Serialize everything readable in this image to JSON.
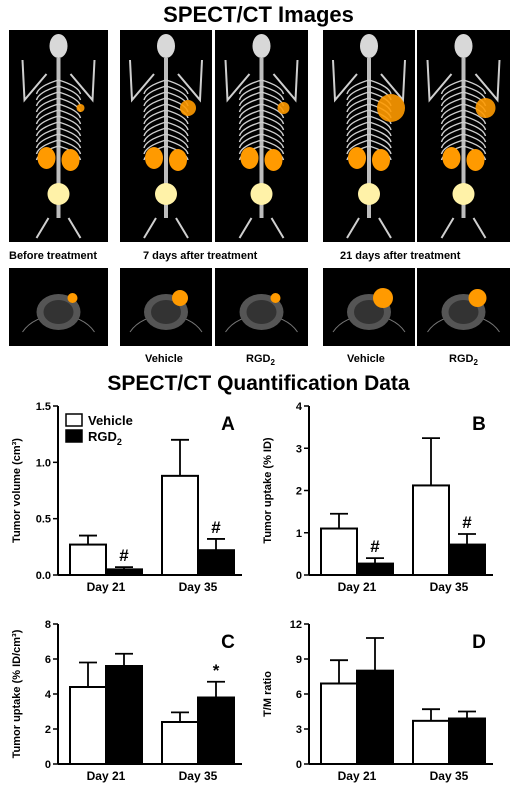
{
  "titles": {
    "images": "SPECT/CT Images",
    "quant": "SPECT/CT Quantification Data"
  },
  "image_captions": {
    "before": "Before treatment",
    "day7": "7 days after treatment",
    "day21": "21 days after treatment",
    "vehicle_a": "Vehicle",
    "rgd_a": "RGD",
    "vehicle_b": "Vehicle",
    "rgd_b": "RGD",
    "subscript": "2"
  },
  "legend": {
    "vehicle": "Vehicle",
    "rgd": "RGD",
    "subscript": "2"
  },
  "colors": {
    "vehicle_fill": "#ffffff",
    "rgd_fill": "#000000",
    "panel_bg": "#000000",
    "hot": "#ff9a00",
    "bone": "#d8d8d8"
  },
  "chart_data": [
    {
      "type": "bar",
      "panel": "A",
      "categories": [
        "Day 21",
        "Day 35"
      ],
      "ylabel": "Tumor volume (cm³)",
      "ylim": [
        0,
        1.5
      ],
      "yticks": [
        0.0,
        0.5,
        1.0,
        1.5
      ],
      "tick_labels": [
        "0.0",
        "0.5",
        "1.0",
        "1.5"
      ],
      "series": [
        {
          "name": "Vehicle",
          "values": [
            0.27,
            0.88
          ],
          "errors": [
            0.08,
            0.32
          ]
        },
        {
          "name": "RGD₂",
          "values": [
            0.05,
            0.22
          ],
          "errors": [
            0.02,
            0.1
          ]
        }
      ],
      "annotations": [
        "#",
        "#"
      ]
    },
    {
      "type": "bar",
      "panel": "B",
      "categories": [
        "Day 21",
        "Day 35"
      ],
      "ylabel": "Tumor uptake (% ID)",
      "ylim": [
        0,
        4
      ],
      "yticks": [
        0,
        1,
        2,
        3,
        4
      ],
      "tick_labels": [
        "0",
        "1",
        "2",
        "3",
        "4"
      ],
      "series": [
        {
          "name": "Vehicle",
          "values": [
            1.1,
            2.12
          ],
          "errors": [
            0.35,
            1.12
          ]
        },
        {
          "name": "RGD₂",
          "values": [
            0.27,
            0.72
          ],
          "errors": [
            0.13,
            0.25
          ]
        }
      ],
      "annotations": [
        "#",
        "#"
      ]
    },
    {
      "type": "bar",
      "panel": "C",
      "categories": [
        "Day 21",
        "Day 35"
      ],
      "ylabel": "Tumor uptake (% ID/cm³)",
      "ylim": [
        0,
        8
      ],
      "yticks": [
        0,
        2,
        4,
        6,
        8
      ],
      "tick_labels": [
        "0",
        "2",
        "4",
        "6",
        "8"
      ],
      "series": [
        {
          "name": "Vehicle",
          "values": [
            4.4,
            2.4
          ],
          "errors": [
            1.4,
            0.55
          ]
        },
        {
          "name": "RGD₂",
          "values": [
            5.6,
            3.8
          ],
          "errors": [
            0.7,
            0.9
          ]
        }
      ],
      "annotations": [
        "",
        "*"
      ]
    },
    {
      "type": "bar",
      "panel": "D",
      "categories": [
        "Day 21",
        "Day 35"
      ],
      "ylabel": "T/M ratio",
      "ylim": [
        0,
        12
      ],
      "yticks": [
        0,
        3,
        6,
        9,
        12
      ],
      "tick_labels": [
        "0",
        "3",
        "6",
        "9",
        "12"
      ],
      "series": [
        {
          "name": "Vehicle",
          "values": [
            6.9,
            3.7
          ],
          "errors": [
            2.0,
            1.0
          ]
        },
        {
          "name": "RGD₂",
          "values": [
            8.0,
            3.9
          ],
          "errors": [
            2.8,
            0.6
          ]
        }
      ],
      "annotations": [
        "",
        ""
      ]
    }
  ]
}
